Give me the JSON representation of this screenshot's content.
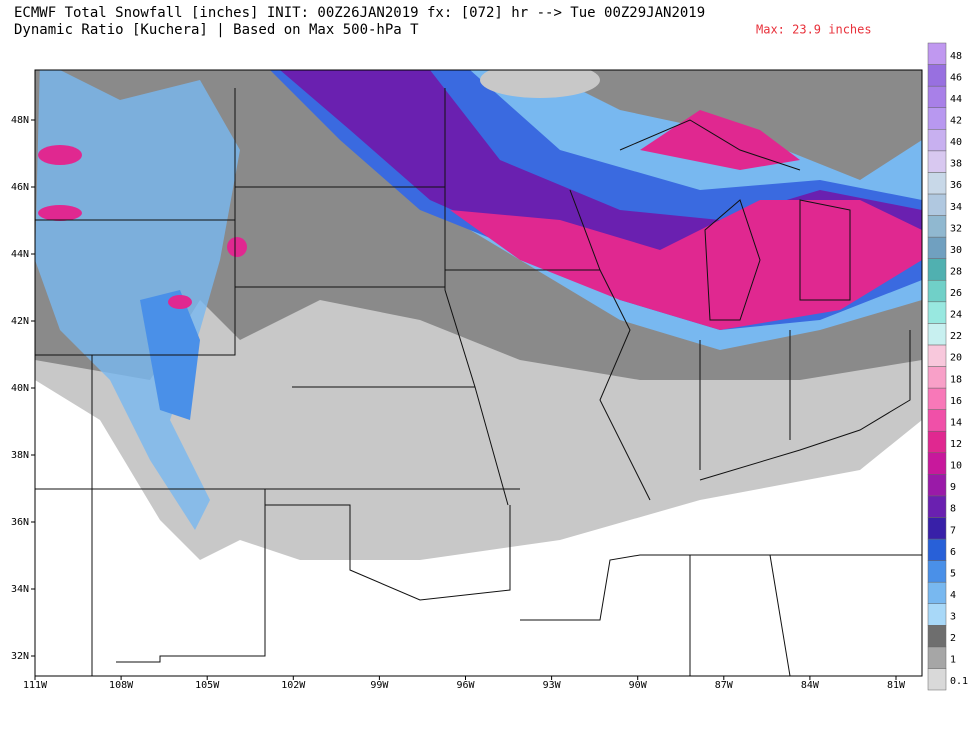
{
  "header": {
    "line1": "ECMWF Total Snowfall [inches] INIT: 00Z26JAN2019 fx: [072] hr --> Tue 00Z29JAN2019",
    "line2": "Dynamic Ratio [Kuchera] | Based on Max 500-hPa T",
    "max": "Max: 23.9 inches"
  },
  "latitude_labels": [
    "48N",
    "46N",
    "44N",
    "42N",
    "40N",
    "38N",
    "36N",
    "34N",
    "32N"
  ],
  "longitude_labels": [
    "111W",
    "108W",
    "105W",
    "102W",
    "99W",
    "96W",
    "93W",
    "90W",
    "87W",
    "84W",
    "81W"
  ],
  "colorbar": {
    "labels": [
      "0.1",
      "1",
      "2",
      "3",
      "4",
      "5",
      "6",
      "7",
      "8",
      "9",
      "10",
      "12",
      "14",
      "16",
      "18",
      "20",
      "22",
      "24",
      "26",
      "28",
      "30",
      "32",
      "34",
      "36",
      "38",
      "40",
      "42",
      "44",
      "46",
      "48"
    ],
    "colors": [
      "#d9d9d9",
      "#a6a6a6",
      "#6e6e6e",
      "#a8d8f8",
      "#78b8f0",
      "#4a90e8",
      "#2860d8",
      "#3820a8",
      "#6a20b0",
      "#9a1aa8",
      "#c8189c",
      "#e02890",
      "#f050a8",
      "#f878b8",
      "#f8a0c8",
      "#f8c8dc",
      "#c8f0f0",
      "#98e8e0",
      "#70d0c8",
      "#50b0b0",
      "#70a0c0",
      "#90b8d0",
      "#b0c8e0",
      "#c8d8e8",
      "#d8c8f0",
      "#c8b0f0",
      "#b898f0",
      "#a880e8",
      "#9870e0",
      "#c098f0"
    ]
  }
}
